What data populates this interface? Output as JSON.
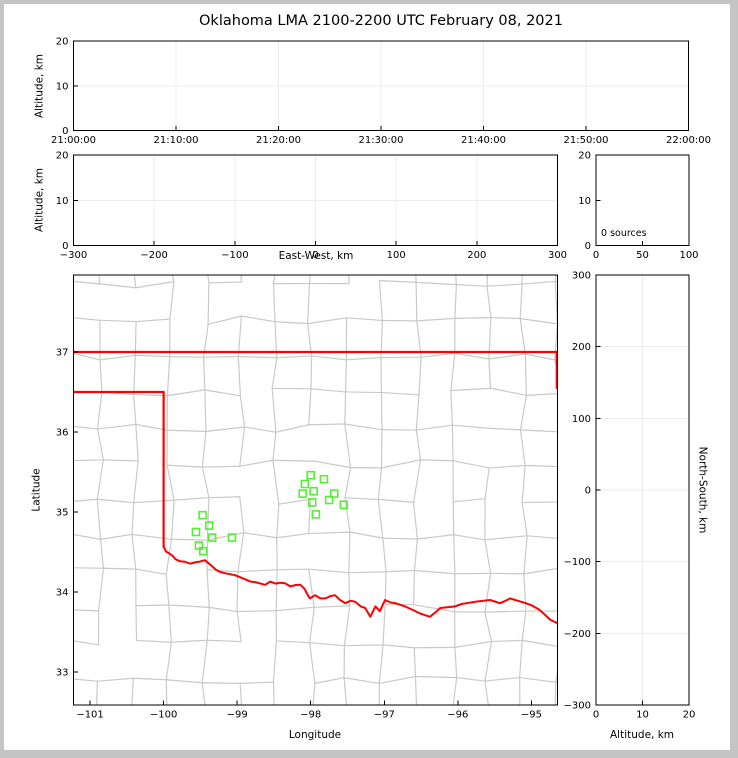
{
  "figure": {
    "title": "Oklahoma LMA 2100-2200 UTC February 08, 2021",
    "background": "#ffffff",
    "frame_color": "#c4c4c4"
  },
  "colors": {
    "axis": "#000000",
    "grid": "#ececec",
    "county_border": "#c9c9c9",
    "state_border": "#ff0000",
    "station_marker": "#55ee33"
  },
  "panels": {
    "time_height": {
      "ylabel": "Altitude, km",
      "x_tick_labels": [
        "21:00:00",
        "21:10:00",
        "21:20:00",
        "21:30:00",
        "21:40:00",
        "21:50:00",
        "22:00:00"
      ],
      "y_tick_labels": [
        "0",
        "10",
        "20"
      ]
    },
    "ew_height": {
      "ylabel": "Altitude, km",
      "xlabel": "East-West, km",
      "x_tick_labels": [
        "−300",
        "−200",
        "−100",
        "0",
        "100",
        "200",
        "300"
      ],
      "y_tick_labels": [
        "0",
        "10",
        "20"
      ]
    },
    "source_histogram": {
      "annotation": "0 sources",
      "x_tick_labels": [
        "0",
        "50",
        "100"
      ],
      "y_tick_labels": [
        "0",
        "10",
        "20"
      ]
    },
    "plan_view_map": {
      "xlabel": "Longitude",
      "ylabel": "Latitude",
      "x_tick_labels": [
        "−101",
        "−100",
        "−99",
        "−98",
        "−97",
        "−96",
        "−95"
      ],
      "y_tick_labels": [
        "37",
        "36",
        "35",
        "34",
        "33"
      ]
    },
    "ns_height": {
      "xlabel": "Altitude, km",
      "ylabel_right": "North-South, km",
      "x_tick_labels": [
        "0",
        "10",
        "20"
      ],
      "y_tick_labels": [
        "300",
        "200",
        "100",
        "0",
        "−100",
        "−200",
        "−300"
      ]
    }
  },
  "chart_data": {
    "type": "multi-panel-lma-scatter",
    "title": "Oklahoma LMA 2100-2200 UTC February 08, 2021",
    "source_count": 0,
    "time_height": {
      "type": "scatter",
      "ylabel": "Altitude, km",
      "x_ticks": [
        "21:00:00",
        "21:10:00",
        "21:20:00",
        "21:30:00",
        "21:40:00",
        "21:50:00",
        "22:00:00"
      ],
      "ylim": [
        0,
        20
      ],
      "y_ticks": [
        0,
        10,
        20
      ],
      "points": []
    },
    "ew_height": {
      "type": "scatter",
      "xlabel": "East-West, km",
      "ylabel": "Altitude, km",
      "xlim": [
        -300,
        300
      ],
      "x_ticks": [
        -300,
        -200,
        -100,
        0,
        100,
        200,
        300
      ],
      "ylim": [
        0,
        20
      ],
      "y_ticks": [
        0,
        10,
        20
      ],
      "points": []
    },
    "source_histogram": {
      "type": "line",
      "annotation": "0 sources",
      "xlim": [
        0,
        100
      ],
      "x_ticks": [
        0,
        50,
        100
      ],
      "ylim": [
        0,
        20
      ],
      "y_ticks": [
        0,
        10,
        20
      ],
      "points": []
    },
    "plan_view_map": {
      "type": "map-scatter",
      "xlabel": "Longitude",
      "ylabel": "Latitude",
      "xlim": [
        -101.225,
        -94.645
      ],
      "x_ticks": [
        -101,
        -100,
        -99,
        -98,
        -97,
        -96,
        -95
      ],
      "ylim": [
        32.5875,
        37.9625
      ],
      "y_ticks": [
        37,
        36,
        35,
        34,
        33
      ],
      "lma_stations_lonlat": [
        [
          -98.0,
          35.46
        ],
        [
          -97.82,
          35.41
        ],
        [
          -98.08,
          35.35
        ],
        [
          -98.11,
          35.23
        ],
        [
          -97.96,
          35.26
        ],
        [
          -97.68,
          35.23
        ],
        [
          -97.98,
          35.12
        ],
        [
          -97.75,
          35.15
        ],
        [
          -97.55,
          35.09
        ],
        [
          -97.93,
          34.97
        ],
        [
          -99.47,
          34.96
        ],
        [
          -99.38,
          34.83
        ],
        [
          -99.56,
          34.75
        ],
        [
          -99.34,
          34.68
        ],
        [
          -99.07,
          34.68
        ],
        [
          -99.52,
          34.58
        ],
        [
          -99.46,
          34.51
        ]
      ],
      "state_borders": {
        "kansas_oklahoma": [
          [
            -101.225,
            37.0
          ],
          [
            -94.645,
            37.0
          ]
        ],
        "panhandle_south": [
          [
            -101.225,
            36.5
          ],
          [
            -100.0,
            36.5
          ]
        ],
        "texas_100th_meridian": [
          [
            -100.0,
            36.5
          ],
          [
            -100.0,
            34.565
          ]
        ],
        "oklahoma_east": [
          [
            -94.655,
            37.0
          ],
          [
            -94.655,
            36.55
          ]
        ],
        "red_river": [
          [
            -100.0,
            34.565
          ],
          [
            -99.965,
            34.505
          ],
          [
            -99.92,
            34.48
          ],
          [
            -99.87,
            34.445
          ],
          [
            -99.84,
            34.41
          ],
          [
            -99.78,
            34.385
          ],
          [
            -99.72,
            34.38
          ],
          [
            -99.64,
            34.355
          ],
          [
            -99.575,
            34.37
          ],
          [
            -99.52,
            34.378
          ],
          [
            -99.44,
            34.398
          ],
          [
            -99.39,
            34.36
          ],
          [
            -99.35,
            34.33
          ],
          [
            -99.29,
            34.28
          ],
          [
            -99.23,
            34.25
          ],
          [
            -99.165,
            34.235
          ],
          [
            -99.12,
            34.228
          ],
          [
            -99.03,
            34.21
          ],
          [
            -98.96,
            34.185
          ],
          [
            -98.92,
            34.17
          ],
          [
            -98.82,
            34.13
          ],
          [
            -98.76,
            34.125
          ],
          [
            -98.7,
            34.11
          ],
          [
            -98.62,
            34.09
          ],
          [
            -98.55,
            34.13
          ],
          [
            -98.48,
            34.105
          ],
          [
            -98.42,
            34.115
          ],
          [
            -98.35,
            34.11
          ],
          [
            -98.28,
            34.07
          ],
          [
            -98.2,
            34.088
          ],
          [
            -98.14,
            34.09
          ],
          [
            -98.085,
            34.04
          ],
          [
            -98.03,
            33.945
          ],
          [
            -98.01,
            33.92
          ],
          [
            -97.94,
            33.96
          ],
          [
            -97.87,
            33.92
          ],
          [
            -97.8,
            33.92
          ],
          [
            -97.73,
            33.95
          ],
          [
            -97.67,
            33.96
          ],
          [
            -97.6,
            33.9
          ],
          [
            -97.53,
            33.86
          ],
          [
            -97.46,
            33.89
          ],
          [
            -97.4,
            33.88
          ],
          [
            -97.32,
            33.82
          ],
          [
            -97.26,
            33.8
          ],
          [
            -97.19,
            33.69
          ],
          [
            -97.12,
            33.82
          ],
          [
            -97.06,
            33.76
          ],
          [
            -96.99,
            33.9
          ],
          [
            -96.92,
            33.87
          ],
          [
            -96.85,
            33.86
          ],
          [
            -96.78,
            33.84
          ],
          [
            -96.72,
            33.82
          ],
          [
            -96.6,
            33.77
          ],
          [
            -96.51,
            33.73
          ],
          [
            -96.38,
            33.69
          ],
          [
            -96.3,
            33.75
          ],
          [
            -96.24,
            33.8
          ],
          [
            -96.14,
            33.81
          ],
          [
            -96.04,
            33.82
          ],
          [
            -95.95,
            33.85
          ],
          [
            -95.85,
            33.865
          ],
          [
            -95.75,
            33.88
          ],
          [
            -95.65,
            33.89
          ],
          [
            -95.56,
            33.9
          ],
          [
            -95.43,
            33.86
          ],
          [
            -95.35,
            33.89
          ],
          [
            -95.29,
            33.92
          ],
          [
            -95.22,
            33.9
          ],
          [
            -95.15,
            33.88
          ],
          [
            -95.06,
            33.855
          ],
          [
            -94.99,
            33.83
          ],
          [
            -94.9,
            33.785
          ],
          [
            -94.82,
            33.72
          ],
          [
            -94.74,
            33.65
          ],
          [
            -94.645,
            33.61
          ]
        ]
      },
      "county_grid_style": {
        "seed": 13,
        "lon_step": 0.48,
        "lat_step": 0.45,
        "jitter": 0.055,
        "keep_probability": 0.88
      }
    },
    "ns_height": {
      "type": "scatter",
      "xlabel": "Altitude, km",
      "ylabel_right": "North-South, km",
      "xlim": [
        0,
        20
      ],
      "x_ticks": [
        0,
        10,
        20
      ],
      "ylim": [
        -300,
        300
      ],
      "y_ticks": [
        300,
        200,
        100,
        0,
        -100,
        -200,
        -300
      ],
      "points": []
    }
  }
}
